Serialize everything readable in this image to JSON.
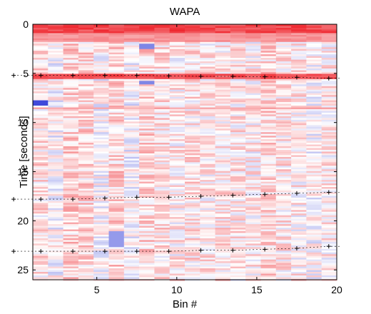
{
  "chart_data": {
    "type": "heatmap",
    "title": "WAPA",
    "xlabel": "Bin #",
    "ylabel": "Time [seconds]",
    "xlim": [
      1,
      20
    ],
    "ylim": [
      0,
      26
    ],
    "y_reversed": true,
    "x_ticks": [
      5,
      10,
      15,
      20
    ],
    "y_ticks": [
      0,
      5,
      10,
      15,
      20,
      25
    ],
    "n_bins": 20,
    "colormap": {
      "negative": "#2a35d6",
      "neutral": "#ffffff",
      "positive": "#ee1c24"
    },
    "strong_positive_rows": [
      {
        "t0": 0.0,
        "t1": 0.9,
        "value": 0.95
      },
      {
        "t0": 0.9,
        "t1": 1.8,
        "value": 0.55
      },
      {
        "t0": 5.0,
        "t1": 5.6,
        "value": 0.9
      },
      {
        "t0": 8.4,
        "t1": 8.7,
        "value": 0.45
      }
    ],
    "strong_negative_cells": [
      {
        "bin": 1,
        "t0": 7.8,
        "t1": 8.3,
        "value": -0.9
      },
      {
        "bin": 6,
        "t0": 21.0,
        "t1": 22.6,
        "value": -0.5
      },
      {
        "bin": 8,
        "t0": 2.0,
        "t1": 2.5,
        "value": -0.6
      },
      {
        "bin": 8,
        "t0": 5.8,
        "t1": 6.2,
        "value": -0.6
      }
    ],
    "marker_tracks": [
      {
        "x": [
          -0.2,
          1.5,
          3.5,
          5.5,
          7.5,
          9.5,
          11.5,
          13.5,
          15.5,
          17.5,
          19.5
        ],
        "y": [
          5.2,
          5.2,
          5.2,
          5.2,
          5.2,
          5.25,
          5.3,
          5.3,
          5.35,
          5.4,
          5.5
        ]
      },
      {
        "x": [
          -0.2,
          1.5,
          3.5,
          5.5,
          7.5,
          9.5,
          11.5,
          13.5,
          15.5,
          17.5,
          19.5
        ],
        "y": [
          17.8,
          17.8,
          17.8,
          17.7,
          17.6,
          17.6,
          17.5,
          17.4,
          17.3,
          17.2,
          17.1
        ]
      },
      {
        "x": [
          -0.2,
          1.5,
          3.5,
          5.5,
          7.5,
          9.5,
          11.5,
          13.5,
          15.5,
          17.5,
          19.5
        ],
        "y": [
          23.1,
          23.1,
          23.1,
          23.1,
          23.1,
          23.1,
          23.0,
          23.0,
          22.9,
          22.8,
          22.6
        ]
      }
    ]
  }
}
